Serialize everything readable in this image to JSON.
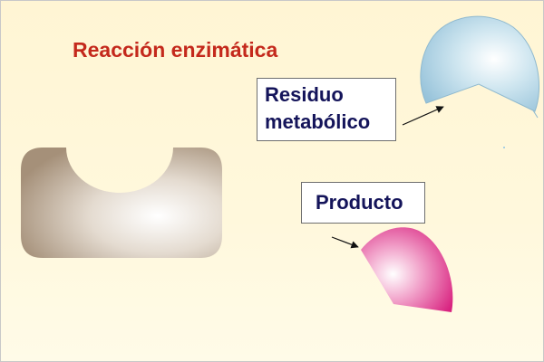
{
  "title": "Reacción enzimática",
  "labels": {
    "residuo_line1": "Residuo",
    "residuo_line2": "metabólico",
    "producto": "Producto"
  },
  "colors": {
    "title": "#c4291c",
    "label_text": "#14145a",
    "enzyme": "#b2a08c",
    "residue": "#a9d0e2",
    "product": "#e04a96"
  }
}
